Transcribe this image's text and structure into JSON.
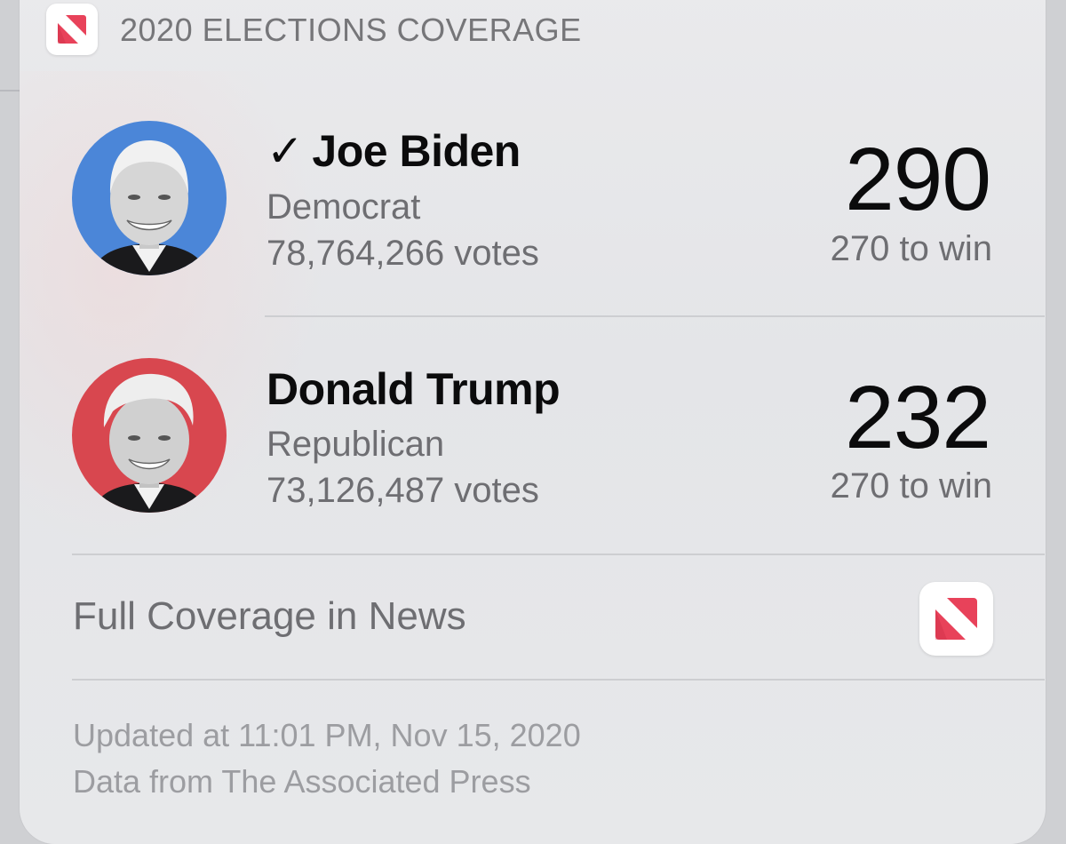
{
  "header": {
    "title": "2020 ELECTIONS COVERAGE",
    "icon": "apple-news-icon"
  },
  "candidates": [
    {
      "check": "✓",
      "name": "Joe Biden",
      "party": "Democrat",
      "votes": "78,764,266 votes",
      "electoral": "290",
      "to_win": "270 to win",
      "avatar_color": "#4b86d8",
      "winner": true
    },
    {
      "check": "",
      "name": "Donald Trump",
      "party": "Republican",
      "votes": "73,126,487 votes",
      "electoral": "232",
      "to_win": "270 to win",
      "avatar_color": "#d8474f",
      "winner": false
    }
  ],
  "coverage": {
    "label": "Full Coverage in News",
    "icon": "apple-news-icon"
  },
  "footer": {
    "updated": "Updated at 11:01 PM, Nov 15, 2020",
    "source": "Data from The Associated Press"
  },
  "colors": {
    "news_red": "#e8425a",
    "news_dark_red": "#c92b45"
  }
}
